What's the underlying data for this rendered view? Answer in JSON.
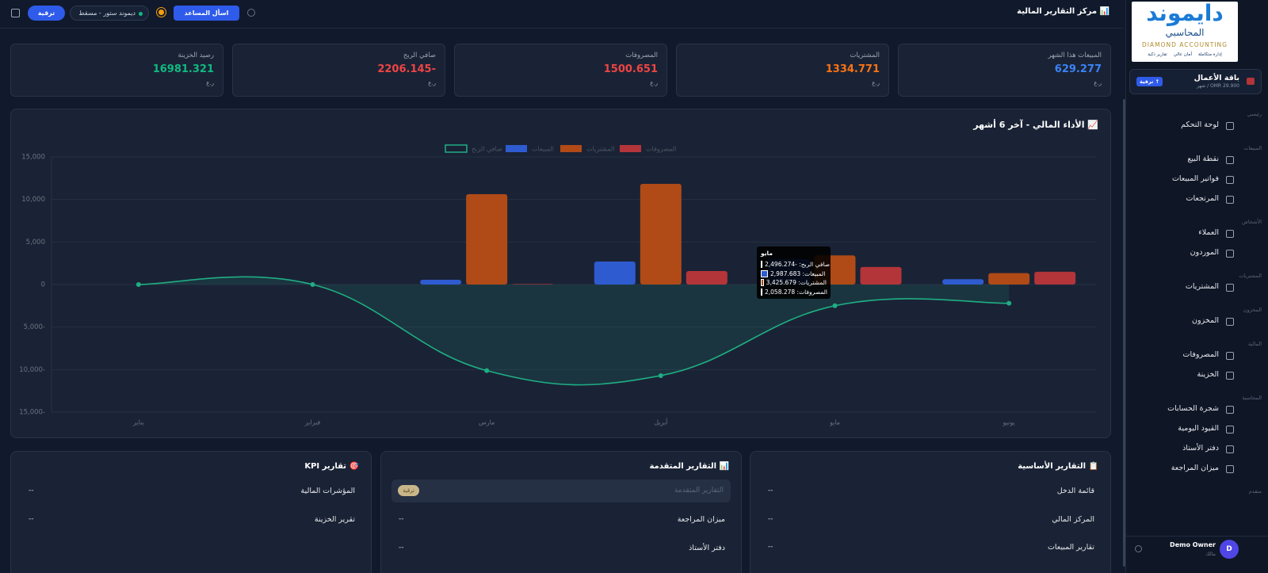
{
  "header": {
    "title": "📊 مركز التقارير المالية",
    "assistant": "اسأل المساعد",
    "store": "ديموند ستور - مسقط",
    "upgrade": "ترقية"
  },
  "sidebar": {
    "logo": "دايموند",
    "logo_sub": "المحاسبي",
    "logo_en": "DIAMOND ACCOUNTING",
    "features": [
      "إدارة متكاملة",
      "أمان عالي",
      "تقارير ذكية"
    ],
    "plan": {
      "name": "باقة الأعمال",
      "price": "OMR 29.900 / شهر",
      "badge": "↑ ترقية"
    },
    "sections": [
      {
        "title": "رئيسي",
        "items": [
          "لوحة التحكم"
        ]
      },
      {
        "title": "المبيعات",
        "items": [
          "نقطة البيع",
          "فواتير المبيعات",
          "المرتجعات"
        ]
      },
      {
        "title": "الأشخاص",
        "items": [
          "العملاء",
          "الموردون"
        ]
      },
      {
        "title": "المشتريات",
        "items": [
          "المشتريات"
        ]
      },
      {
        "title": "المخزون",
        "items": [
          "المخزون"
        ]
      },
      {
        "title": "المالية",
        "items": [
          "المصروفات",
          "الخزينة"
        ]
      },
      {
        "title": "المحاسبة",
        "items": [
          "شجرة الحسابات",
          "القيود اليومية",
          "دفتر الأستاذ",
          "ميزان المراجعة"
        ]
      },
      {
        "title": "متقدم",
        "items": []
      }
    ],
    "user": {
      "initial": "D",
      "name": "Demo Owner",
      "role": "مالك"
    }
  },
  "kpis": [
    {
      "label": "المبيعات هذا الشهر",
      "value": "629.277",
      "unit": "ر.ع",
      "color": "#3b82f6"
    },
    {
      "label": "المشتريات",
      "value": "1334.771",
      "unit": "ر.ع",
      "color": "#f97316"
    },
    {
      "label": "المصروفات",
      "value": "1500.651",
      "unit": "ر.ع",
      "color": "#ef4444"
    },
    {
      "label": "صافي الربح",
      "value": "-2206.145",
      "unit": "ر.ع",
      "color": "#ef4444"
    },
    {
      "label": "رصيد الخزينة",
      "value": "16981.321",
      "unit": "ر.ع",
      "color": "#10b981"
    }
  ],
  "chart_data": {
    "type": "bar",
    "title": "📈 الأداء المالي - آخر 6 أشهر",
    "categories": [
      "يناير",
      "فبراير",
      "مارس",
      "أبريل",
      "مايو",
      "يونيو"
    ],
    "series": [
      {
        "name": "المبيعات",
        "color": "#2f5bd0",
        "values": [
          0,
          0,
          560,
          2700,
          2987.683,
          629.277
        ]
      },
      {
        "name": "المشتريات",
        "color": "#b04a17",
        "values": [
          0,
          0,
          10620,
          11830,
          3425.679,
          1334.771
        ]
      },
      {
        "name": "المصروفات",
        "color": "#b3353a",
        "values": [
          0,
          0,
          60,
          1580,
          2058.278,
          1500.651
        ]
      },
      {
        "name": "صافي الربح",
        "type": "line",
        "color": "#1fae84",
        "values": [
          0,
          0,
          -10120,
          -10710,
          -2496.274,
          -2206.145
        ]
      }
    ],
    "ylim": [
      -15000,
      15000
    ],
    "yticks": [
      {
        "value": -15000,
        "label": "15,000-"
      },
      {
        "value": -10000,
        "label": "10,000-"
      },
      {
        "value": -5000,
        "label": "5,000-"
      },
      0,
      {
        "value": 5000,
        "label": "5,000"
      },
      {
        "value": 10000,
        "label": "10,000"
      },
      {
        "value": 15000,
        "label": "15,000"
      }
    ],
    "grid": true,
    "legend": "top",
    "tooltip": {
      "items": [
        "صافي الربح: -2,496.274",
        "المبيعات: 2,987.683",
        "المشتريات: 3,425.679",
        "المصروفات: 2,058.278"
      ]
    }
  },
  "report_cards": [
    {
      "title": "📋 التقارير الأساسية",
      "rows": [
        {
          "label": "قائمة الدخل",
          "value": "--"
        },
        {
          "label": "المركز المالي",
          "value": "--"
        },
        {
          "label": "تقارير المبيعات",
          "value": "--"
        }
      ]
    },
    {
      "title": "📊 التقارير المتقدمة",
      "locked": {
        "label": "التقارير المتقدمة",
        "badge": "ترقية"
      },
      "rows": [
        {
          "label": "ميزان المراجعة",
          "value": "--"
        },
        {
          "label": "دفتر الأستاذ",
          "value": "--"
        }
      ]
    },
    {
      "title": "🎯 تقارير KPI",
      "rows": [
        {
          "label": "المؤشرات المالية",
          "value": "--"
        },
        {
          "label": "تقرير الخزينة",
          "value": "--"
        }
      ]
    }
  ]
}
